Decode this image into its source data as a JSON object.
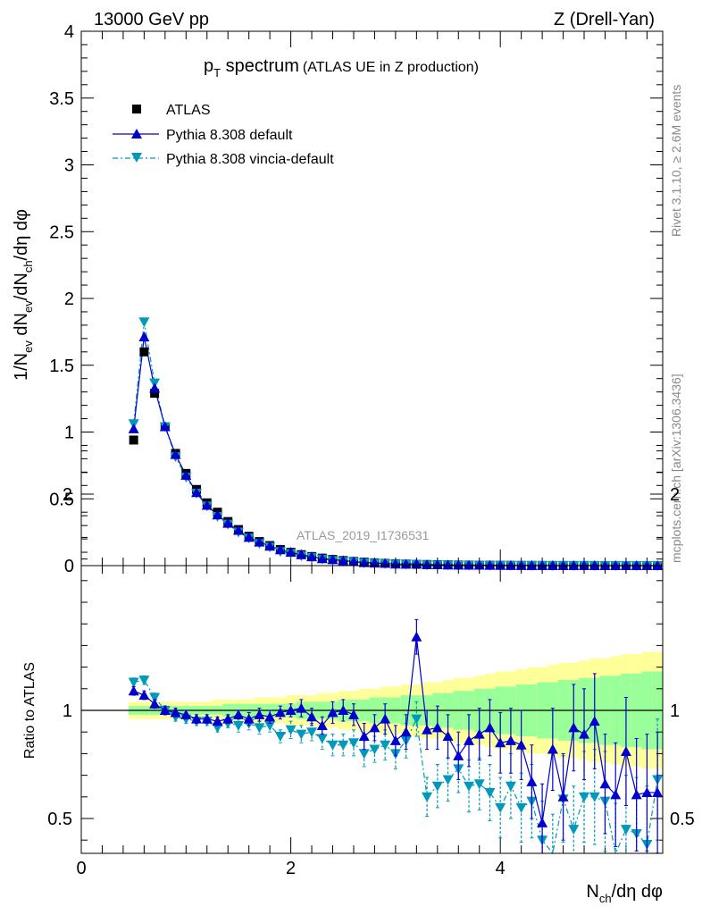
{
  "header": {
    "energy": "13000 GeV pp",
    "process": "Z (Drell-Yan)"
  },
  "side": {
    "rivet": "Rivet 3.1.10, ≥ 2.6M events",
    "mcplots": "mcplots.cern.ch [arXiv:1306.3436]"
  },
  "chart_data": {
    "type": "scatter",
    "title": {
      "main": "p",
      "sub": "T",
      "rest": " spectrum",
      "note": "(ATLAS UE in Z production)"
    },
    "analysis_label": "ATLAS_2019_I1736531",
    "xlabel": {
      "a": "N",
      "a_sub": "ch",
      "b": "/dη dφ"
    },
    "ylabel": {
      "a": "1/N",
      "a_sub": "ev",
      "b": " dN",
      "b_sub": "ev",
      "c": "/dN",
      "c_sub": "ch",
      "d": "/dη dφ"
    },
    "ratio_ylabel": "Ratio to ATLAS",
    "xlim": [
      0,
      5.55
    ],
    "ylim": [
      0,
      4
    ],
    "ratio_ylim": [
      0.33,
      2.26
    ],
    "xticks": [
      "0",
      "2",
      "4"
    ],
    "yticks": [
      "0",
      "0.5",
      "1",
      "1.5",
      "2",
      "2.5",
      "3",
      "3.5",
      "4"
    ],
    "ratio_yticks": [
      "0.5",
      "1",
      "2"
    ],
    "x": [
      0.5,
      0.6,
      0.7,
      0.8,
      0.9,
      1.0,
      1.1,
      1.2,
      1.3,
      1.4,
      1.5,
      1.6,
      1.7,
      1.8,
      1.9,
      2.0,
      2.1,
      2.2,
      2.3,
      2.4,
      2.5,
      2.6,
      2.7,
      2.8,
      2.9,
      3.0,
      3.1,
      3.2,
      3.3,
      3.4,
      3.5,
      3.6,
      3.7,
      3.8,
      3.9,
      4.0,
      4.1,
      4.2,
      4.3,
      4.4,
      4.5,
      4.6,
      4.7,
      4.8,
      4.9,
      5.0,
      5.1,
      5.2,
      5.3,
      5.4,
      5.5
    ],
    "series": [
      {
        "name": "ATLAS",
        "color": "#000000",
        "values": [
          0.94,
          1.6,
          1.29,
          1.04,
          0.84,
          0.69,
          0.57,
          0.47,
          0.4,
          0.33,
          0.27,
          0.22,
          0.18,
          0.15,
          0.12,
          0.1,
          0.082,
          0.068,
          0.056,
          0.046,
          0.038,
          0.031,
          0.026,
          0.021,
          0.017,
          0.014,
          0.012,
          0.01,
          0.008,
          0.007,
          0.006,
          0.005,
          0.004,
          0.0035,
          0.003,
          0.0025,
          0.002,
          0.0017,
          0.0014,
          0.0012,
          0.001,
          0.0009,
          0.0008,
          0.0007,
          0.0006,
          0.0005,
          0.0004,
          0.0004,
          0.0003,
          0.0003,
          0.0002
        ]
      },
      {
        "name": "Pythia 8.308 default",
        "color": "#0000cc",
        "ratio": [
          1.09,
          1.07,
          1.03,
          1.0,
          0.99,
          0.98,
          0.96,
          0.96,
          0.95,
          0.96,
          0.98,
          0.96,
          0.98,
          0.97,
          0.99,
          1.0,
          1.01,
          0.97,
          0.93,
          0.99,
          1.0,
          0.98,
          0.88,
          0.92,
          0.96,
          0.86,
          0.9,
          1.34,
          0.91,
          0.92,
          0.88,
          0.79,
          0.86,
          0.89,
          0.92,
          0.85,
          0.86,
          0.84,
          0.67,
          0.48,
          0.82,
          0.6,
          0.92,
          0.89,
          0.95,
          0.66,
          0.61,
          0.81,
          0.61,
          0.62,
          0.62
        ],
        "ratio_err": [
          0.02,
          0.02,
          0.02,
          0.02,
          0.02,
          0.02,
          0.02,
          0.02,
          0.02,
          0.02,
          0.02,
          0.03,
          0.03,
          0.03,
          0.03,
          0.03,
          0.04,
          0.04,
          0.04,
          0.05,
          0.05,
          0.05,
          0.06,
          0.06,
          0.07,
          0.07,
          0.08,
          0.08,
          0.09,
          0.1,
          0.1,
          0.11,
          0.12,
          0.12,
          0.13,
          0.14,
          0.15,
          0.16,
          0.17,
          0.18,
          0.19,
          0.2,
          0.2,
          0.21,
          0.22,
          0.23,
          0.24,
          0.25,
          0.26,
          0.27,
          0.28
        ]
      },
      {
        "name": "Pythia 8.308 vincia-default",
        "color": "#0099bb",
        "ratio": [
          1.13,
          1.14,
          1.06,
          1.0,
          0.97,
          0.96,
          0.95,
          0.95,
          0.92,
          0.94,
          0.93,
          0.94,
          0.92,
          0.93,
          0.88,
          0.91,
          0.89,
          0.9,
          0.87,
          0.84,
          0.84,
          0.85,
          0.8,
          0.82,
          0.84,
          0.8,
          0.86,
          0.96,
          0.6,
          0.65,
          0.68,
          0.73,
          0.65,
          0.66,
          0.62,
          0.55,
          0.65,
          0.55,
          0.58,
          0.4,
          0.33,
          0.59,
          0.45,
          0.6,
          0.6,
          0.58,
          0.33,
          0.45,
          0.43,
          0.38,
          0.68
        ],
        "ratio_err": [
          0.02,
          0.02,
          0.02,
          0.02,
          0.02,
          0.02,
          0.02,
          0.02,
          0.02,
          0.02,
          0.03,
          0.03,
          0.03,
          0.03,
          0.03,
          0.04,
          0.04,
          0.04,
          0.05,
          0.05,
          0.05,
          0.06,
          0.06,
          0.06,
          0.07,
          0.07,
          0.08,
          0.08,
          0.09,
          0.1,
          0.1,
          0.11,
          0.12,
          0.12,
          0.13,
          0.14,
          0.15,
          0.16,
          0.17,
          0.18,
          0.19,
          0.2,
          0.2,
          0.21,
          0.22,
          0.23,
          0.24,
          0.25,
          0.26,
          0.27,
          0.28
        ]
      }
    ],
    "band_inner": [
      0.02,
      0.02,
      0.02,
      0.02,
      0.02,
      0.02,
      0.02,
      0.02,
      0.02,
      0.03,
      0.03,
      0.03,
      0.03,
      0.03,
      0.03,
      0.03,
      0.04,
      0.04,
      0.04,
      0.04,
      0.05,
      0.05,
      0.05,
      0.06,
      0.06,
      0.06,
      0.07,
      0.07,
      0.07,
      0.08,
      0.08,
      0.09,
      0.09,
      0.1,
      0.1,
      0.11,
      0.11,
      0.12,
      0.12,
      0.13,
      0.13,
      0.14,
      0.14,
      0.15,
      0.15,
      0.16,
      0.16,
      0.17,
      0.17,
      0.18,
      0.18
    ],
    "band_outer": [
      0.04,
      0.04,
      0.04,
      0.04,
      0.04,
      0.04,
      0.04,
      0.04,
      0.05,
      0.05,
      0.05,
      0.05,
      0.06,
      0.06,
      0.06,
      0.07,
      0.07,
      0.07,
      0.08,
      0.08,
      0.09,
      0.09,
      0.1,
      0.1,
      0.11,
      0.11,
      0.12,
      0.12,
      0.13,
      0.13,
      0.14,
      0.15,
      0.15,
      0.16,
      0.17,
      0.18,
      0.18,
      0.19,
      0.2,
      0.2,
      0.21,
      0.22,
      0.22,
      0.23,
      0.24,
      0.24,
      0.25,
      0.26,
      0.26,
      0.27,
      0.27
    ],
    "colors": {
      "band_inner": "#99ff99",
      "band_outer": "#ffff99"
    }
  }
}
